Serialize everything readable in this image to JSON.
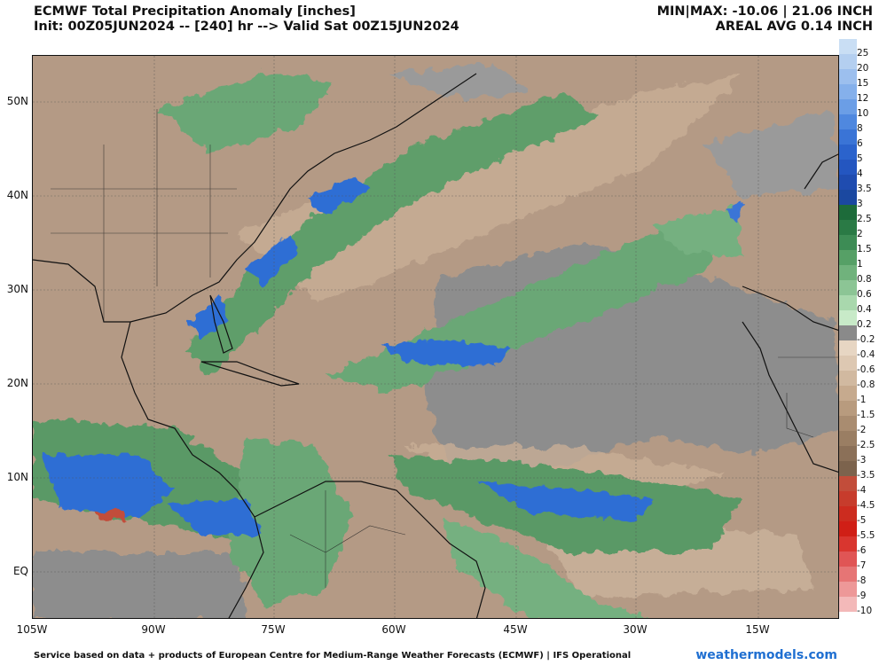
{
  "header": {
    "title": "ECMWF Total Precipitation Anomaly [inches]",
    "init": "Init: 00Z05JUN2024 -- [240] hr --> Valid Sat 00Z15JUN2024",
    "minmax": "MIN|MAX: -10.06 | 21.06 INCH",
    "areal_avg": "AREAL AVG 0.14 INCH"
  },
  "axes": {
    "lat_labels": [
      "50N",
      "40N",
      "30N",
      "20N",
      "10N",
      "EQ"
    ],
    "lon_labels": [
      "105W",
      "90W",
      "75W",
      "60W",
      "45W",
      "30W",
      "15W"
    ]
  },
  "colorbar": {
    "labels": [
      "25",
      "20",
      "15",
      "12",
      "10",
      "8",
      "6",
      "5",
      "4",
      "3.5",
      "3",
      "2.5",
      "2",
      "1.5",
      "1",
      "0.8",
      "0.6",
      "0.4",
      "0.2",
      "-0.2",
      "-0.4",
      "-0.6",
      "-0.8",
      "-1",
      "-1.5",
      "-2",
      "-2.5",
      "-3",
      "-3.5",
      "-4",
      "-4.5",
      "-5",
      "-5.5",
      "-6",
      "-7",
      "-8",
      "-9",
      "-10"
    ],
    "colors": [
      "#c9def4",
      "#b4cff0",
      "#9cbfee",
      "#85b0eb",
      "#6b9ee6",
      "#4f88df",
      "#3a74d6",
      "#2b63cc",
      "#2456c0",
      "#1f4cb0",
      "#1b48a0",
      "#1d6b3a",
      "#2a7a45",
      "#3d8c55",
      "#56a066",
      "#70b27c",
      "#8cc595",
      "#a9d8ad",
      "#c8eac8",
      "#8a8a8a",
      "#e7d6c3",
      "#ddc8b2",
      "#d1b9a0",
      "#c6aa8e",
      "#b89b7e",
      "#a98c70",
      "#9a7e63",
      "#8b7058",
      "#7c634d",
      "#c24d3a",
      "#c73c2c",
      "#cc2c1f",
      "#d01f16",
      "#d9362f",
      "#e05555",
      "#e67575",
      "#ed9898",
      "#f3b9b9"
    ]
  },
  "footer": {
    "credit": "Service based on data + products of European Centre for Medium-Range Weather Forecasts (ECMWF) | IFS Operational",
    "watermark": "weathermodels.com"
  }
}
